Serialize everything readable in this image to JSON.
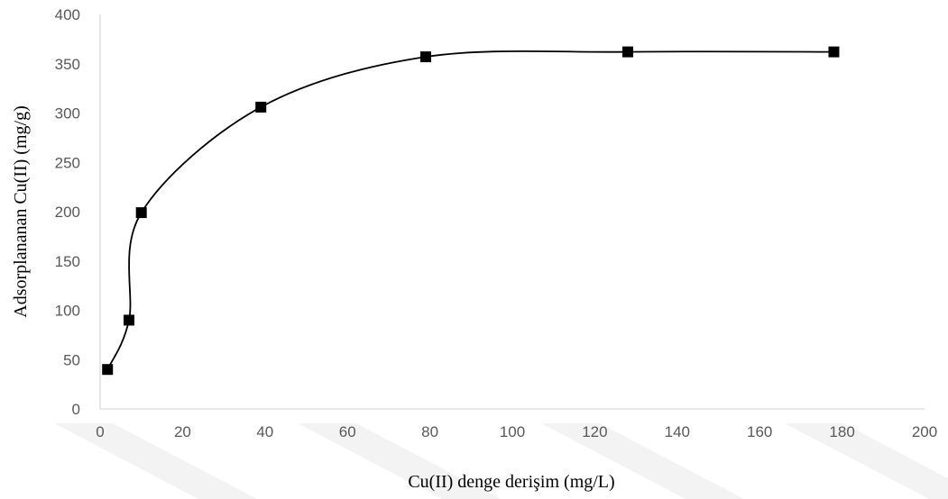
{
  "chart_data": {
    "type": "scatter",
    "title": "",
    "xlabel": "Cu(II) denge derişim (mg/L)",
    "ylabel": "Adsorplananan Cu(II) (mg/g)",
    "xlim": [
      0,
      200
    ],
    "ylim": [
      0,
      400
    ],
    "xticks": [
      "0",
      "20",
      "40",
      "60",
      "80",
      "100",
      "120",
      "140",
      "160",
      "180",
      "200"
    ],
    "yticks": [
      "0",
      "50",
      "100",
      "150",
      "200",
      "250",
      "300",
      "350",
      "400"
    ],
    "grid": false,
    "legend": "none",
    "line_style": "smoothed",
    "marker": "square",
    "series": [
      {
        "x": [
          1.8,
          7,
          10,
          39,
          79,
          128,
          178
        ],
        "y": [
          40,
          90,
          199,
          306,
          357,
          362,
          362
        ]
      }
    ],
    "colors": {
      "series": "#000000",
      "axis": "#d9d9d9",
      "tick_text": "#595959"
    }
  }
}
